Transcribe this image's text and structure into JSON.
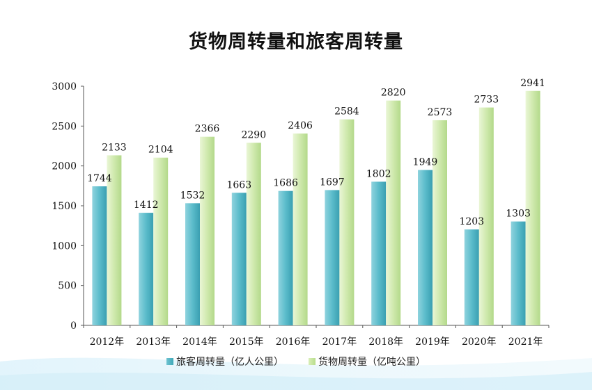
{
  "chart_data": {
    "type": "bar",
    "title": "货物周转量和旅客周转量",
    "categories": [
      "2012年",
      "2013年",
      "2014年",
      "2015年",
      "2016年",
      "2017年",
      "2018年",
      "2019年",
      "2020年",
      "2021年"
    ],
    "series": [
      {
        "name": "旅客周转量（亿人公里）",
        "values": [
          1744,
          1412,
          1532,
          1663,
          1686,
          1697,
          1802,
          1949,
          1203,
          1303
        ],
        "labels": [
          "1744",
          "1412",
          "1532",
          "1663",
          "1686",
          "1697",
          "1802",
          "1949",
          "1203",
          "1303"
        ],
        "color": "#4fb3c2"
      },
      {
        "name": "货物周转量（亿吨公里）",
        "values": [
          2133,
          2104,
          2366,
          2290,
          2406,
          2584,
          2820,
          2573,
          2733,
          2941
        ],
        "labels": [
          "2133",
          "2104",
          "2366",
          "2290",
          "2406",
          "2584",
          "2820",
          "2573",
          "2733",
          "2941"
        ],
        "color": "#c6e6a0"
      }
    ],
    "ylim": [
      0,
      3000
    ],
    "yticks": [
      "0",
      "500",
      "1000",
      "1500",
      "2000",
      "2500",
      "3000"
    ],
    "yticks_values": [
      0,
      500,
      1000,
      1500,
      2000,
      2500,
      3000
    ],
    "xlabel": "",
    "ylabel": "",
    "grid": false,
    "legend": "bottom"
  }
}
